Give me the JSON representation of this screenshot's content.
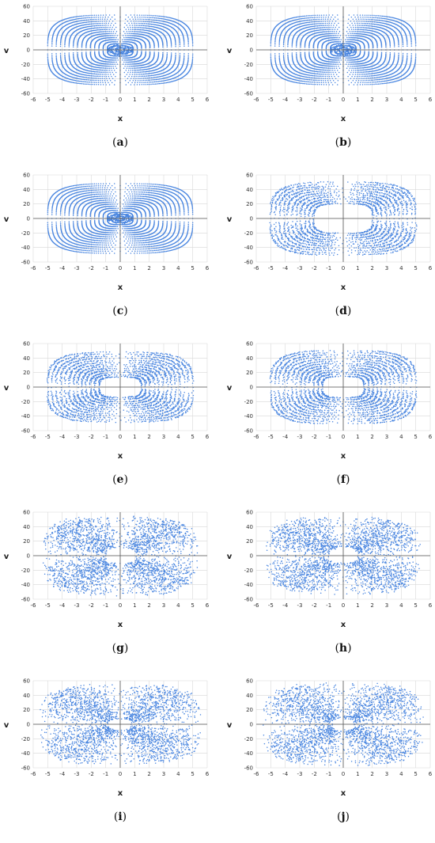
{
  "colors": {
    "orbit": "#4a86e0",
    "grid": "#d8d8d8",
    "axis": "#555555",
    "inner_fill": "#eaf6fb"
  },
  "panel_labels": [
    "a",
    "b",
    "c",
    "d",
    "e",
    "f",
    "g",
    "h",
    "i",
    "j"
  ],
  "chart_data": [
    {
      "id": "a",
      "type": "scatter",
      "title": "",
      "xlabel": "x",
      "ylabel": "v",
      "xlim": [
        -6,
        6
      ],
      "ylim": [
        -60,
        60
      ],
      "xticks": [
        -6,
        -5,
        -4,
        -3,
        -2,
        -1,
        0,
        1,
        2,
        3,
        4,
        5,
        6
      ],
      "yticks": [
        60,
        40,
        20,
        0,
        -20,
        -40,
        -60
      ],
      "grid": true,
      "legend": "none",
      "pattern": "regular",
      "outer_amplitude": [
        5.0,
        48
      ],
      "inner_gap": 0
    },
    {
      "id": "b",
      "type": "scatter",
      "title": "",
      "xlabel": "x",
      "ylabel": "v",
      "xlim": [
        -6,
        6
      ],
      "ylim": [
        -60,
        60
      ],
      "xticks": [
        -6,
        -5,
        -4,
        -3,
        -2,
        -1,
        0,
        1,
        2,
        3,
        4,
        5,
        6
      ],
      "yticks": [
        60,
        40,
        20,
        0,
        -20,
        -40,
        -60
      ],
      "grid": true,
      "legend": "none",
      "pattern": "regular",
      "outer_amplitude": [
        5.0,
        48
      ],
      "inner_gap": 0
    },
    {
      "id": "c",
      "type": "scatter",
      "title": "",
      "xlabel": "x",
      "ylabel": "v",
      "xlim": [
        -6,
        6
      ],
      "ylim": [
        -60,
        60
      ],
      "xticks": [
        -6,
        -5,
        -4,
        -3,
        -2,
        -1,
        0,
        1,
        2,
        3,
        4,
        5,
        6
      ],
      "yticks": [
        60,
        40,
        20,
        0,
        -20,
        -40,
        -60
      ],
      "grid": true,
      "legend": "none",
      "pattern": "regular",
      "outer_amplitude": [
        5.0,
        48
      ],
      "inner_gap": 0
    },
    {
      "id": "d",
      "type": "scatter",
      "title": "",
      "xlabel": "x",
      "ylabel": "v",
      "xlim": [
        -6,
        6
      ],
      "ylim": [
        -60,
        60
      ],
      "xticks": [
        -6,
        -5,
        -4,
        -3,
        -2,
        -1,
        0,
        1,
        2,
        3,
        4,
        5,
        6
      ],
      "yticks": [
        60,
        40,
        20,
        0,
        -20,
        -40,
        -60
      ],
      "grid": true,
      "legend": "none",
      "pattern": "broken",
      "outer_amplitude": [
        5.0,
        50
      ],
      "inner_gap": 1.8
    },
    {
      "id": "e",
      "type": "scatter",
      "title": "",
      "xlabel": "x",
      "ylabel": "v",
      "xlim": [
        -6,
        6
      ],
      "ylim": [
        -60,
        60
      ],
      "xticks": [
        -6,
        -5,
        -4,
        -3,
        -2,
        -1,
        0,
        1,
        2,
        3,
        4,
        5,
        6
      ],
      "yticks": [
        60,
        40,
        20,
        0,
        -20,
        -40,
        -60
      ],
      "grid": true,
      "legend": "none",
      "pattern": "broken",
      "outer_amplitude": [
        5.0,
        48
      ],
      "inner_gap": 1.2
    },
    {
      "id": "f",
      "type": "scatter",
      "title": "",
      "xlabel": "x",
      "ylabel": "v",
      "xlim": [
        -6,
        6
      ],
      "ylim": [
        -60,
        60
      ],
      "xticks": [
        -6,
        -5,
        -4,
        -3,
        -2,
        -1,
        0,
        1,
        2,
        3,
        4,
        5,
        6
      ],
      "yticks": [
        60,
        40,
        20,
        0,
        -20,
        -40,
        -60
      ],
      "grid": true,
      "legend": "none",
      "pattern": "broken",
      "outer_amplitude": [
        5.0,
        50
      ],
      "inner_gap": 1.2
    },
    {
      "id": "g",
      "type": "scatter",
      "title": "",
      "xlabel": "x",
      "ylabel": "v",
      "xlim": [
        -6,
        6
      ],
      "ylim": [
        -60,
        60
      ],
      "xticks": [
        -6,
        -5,
        -4,
        -3,
        -2,
        -1,
        0,
        1,
        2,
        3,
        4,
        5,
        6
      ],
      "yticks": [
        60,
        40,
        20,
        0,
        -20,
        -40,
        -60
      ],
      "grid": true,
      "legend": "none",
      "pattern": "chaotic",
      "outer_amplitude": [
        5.0,
        52
      ],
      "inner_gap": 1.0
    },
    {
      "id": "h",
      "type": "scatter",
      "title": "",
      "xlabel": "x",
      "ylabel": "v",
      "xlim": [
        -6,
        6
      ],
      "ylim": [
        -60,
        60
      ],
      "xticks": [
        -6,
        -5,
        -4,
        -3,
        -2,
        -1,
        0,
        1,
        2,
        3,
        4,
        5,
        6
      ],
      "yticks": [
        60,
        40,
        20,
        0,
        -20,
        -40,
        -60
      ],
      "grid": true,
      "legend": "none",
      "pattern": "chaotic",
      "outer_amplitude": [
        5.0,
        50
      ],
      "inner_gap": 1.0
    },
    {
      "id": "i",
      "type": "scatter",
      "title": "",
      "xlabel": "x",
      "ylabel": "v",
      "xlim": [
        -6,
        6
      ],
      "ylim": [
        -60,
        60
      ],
      "xticks": [
        -6,
        -5,
        -4,
        -3,
        -2,
        -1,
        0,
        1,
        2,
        3,
        4,
        5,
        6
      ],
      "yticks": [
        60,
        40,
        20,
        0,
        -20,
        -40,
        -60
      ],
      "grid": true,
      "legend": "none",
      "pattern": "chaotic",
      "outer_amplitude": [
        5.2,
        52
      ],
      "inner_gap": 0.8
    },
    {
      "id": "j",
      "type": "scatter",
      "title": "",
      "xlabel": "x",
      "ylabel": "v",
      "xlim": [
        -6,
        6
      ],
      "ylim": [
        -60,
        60
      ],
      "xticks": [
        -6,
        -5,
        -4,
        -3,
        -2,
        -1,
        0,
        1,
        2,
        3,
        4,
        5,
        6
      ],
      "yticks": [
        60,
        40,
        20,
        0,
        -20,
        -40,
        -60
      ],
      "grid": true,
      "legend": "none",
      "pattern": "chaotic",
      "outer_amplitude": [
        5.2,
        54
      ],
      "inner_gap": 0.8
    }
  ]
}
